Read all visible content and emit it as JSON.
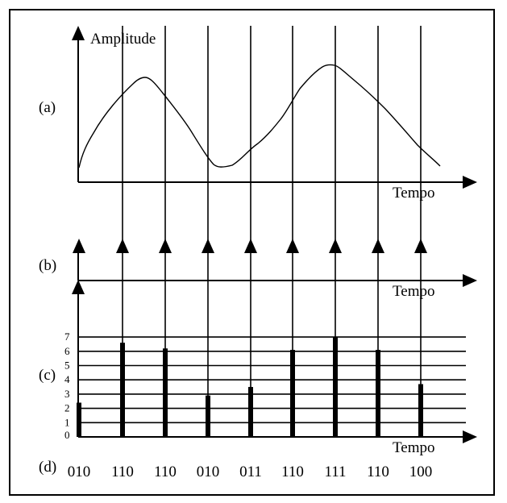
{
  "panels": {
    "a": "(a)",
    "b": "(b)",
    "c": "(c)",
    "d": "(d)"
  },
  "axes": {
    "y_label": "Amplitude",
    "x_label_a": "Tempo",
    "x_label_b": "Tempo",
    "x_label_c": "Tempo"
  },
  "levels": [
    "0",
    "1",
    "2",
    "3",
    "4",
    "5",
    "6",
    "7"
  ],
  "samples": [
    {
      "code": "010",
      "level": 2.4
    },
    {
      "code": "110",
      "level": 6.6
    },
    {
      "code": "110",
      "level": 6.2
    },
    {
      "code": "010",
      "level": 2.9
    },
    {
      "code": "011",
      "level": 3.5
    },
    {
      "code": "110",
      "level": 6.1
    },
    {
      "code": "111",
      "level": 7.0
    },
    {
      "code": "110",
      "level": 6.1
    },
    {
      "code": "100",
      "level": 3.7
    }
  ]
}
